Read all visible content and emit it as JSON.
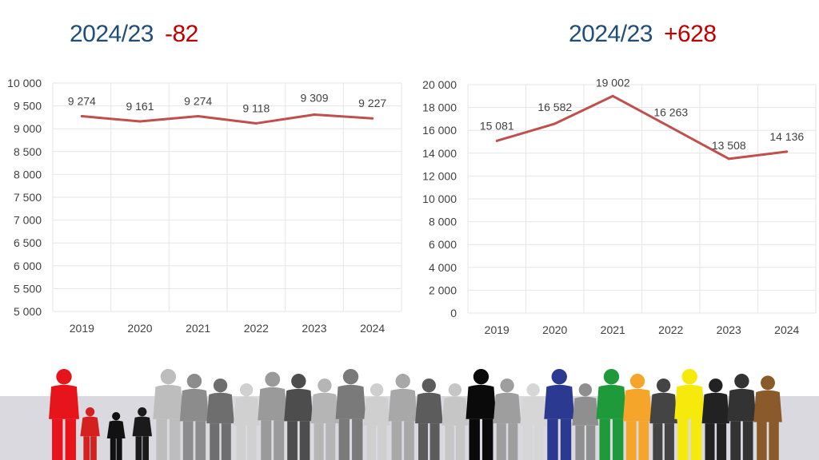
{
  "headings": [
    {
      "period": "2024/23",
      "change": "-82"
    },
    {
      "period": "2024/23",
      "change": "+628"
    }
  ],
  "colors": {
    "heading": "#1f4e79",
    "change": "#c00000",
    "line": "#c0504d",
    "grid": "#e6e6e6",
    "floor": "#d9d9df"
  },
  "chart_data": [
    {
      "type": "line",
      "x": [
        "2019",
        "2020",
        "2021",
        "2022",
        "2023",
        "2024"
      ],
      "series": [
        {
          "values": [
            9274,
            9161,
            9274,
            9118,
            9309,
            9227
          ]
        }
      ],
      "data_labels": [
        "9 274",
        "9 161",
        "9 274",
        "9 118",
        "9 309",
        "9 227"
      ],
      "ylim": [
        5000,
        10000
      ],
      "yticks": [
        "5 000",
        "5 500",
        "6 000",
        "6 500",
        "7 000",
        "7 500",
        "8 000",
        "8 500",
        "9 000",
        "9 500",
        "10 000"
      ],
      "grid": true
    },
    {
      "type": "line",
      "x": [
        "2019",
        "2020",
        "2021",
        "2022",
        "2023",
        "2024"
      ],
      "series": [
        {
          "values": [
            15081,
            16582,
            19002,
            16263,
            13508,
            14136
          ]
        }
      ],
      "data_labels": [
        "15 081",
        "16 582",
        "19 002",
        "16 263",
        "13 508",
        "14 136"
      ],
      "ylim": [
        0,
        20000
      ],
      "yticks": [
        "0",
        "2 000",
        "4 000",
        "6 000",
        "8 000",
        "10 000",
        "12 000",
        "14 000",
        "16 000",
        "18 000",
        "20 000"
      ],
      "grid": true
    }
  ],
  "crowd": {
    "icon": "people-silhouette-icon",
    "figures": [
      {
        "color": "#e8141b"
      },
      {
        "color": "#d52020"
      },
      {
        "color": "#111111"
      },
      {
        "color": "#1a1a1a"
      },
      {
        "color": "#bdbdbd"
      },
      {
        "color": "#8c8c8c"
      },
      {
        "color": "#6e6e6e"
      },
      {
        "color": "#d0d0d0"
      },
      {
        "color": "#9a9a9a"
      },
      {
        "color": "#4d4d4d"
      },
      {
        "color": "#b5b5b5"
      },
      {
        "color": "#7a7a7a"
      },
      {
        "color": "#cfcfcf"
      },
      {
        "color": "#a8a8a8"
      },
      {
        "color": "#5c5c5c"
      },
      {
        "color": "#c6c6c6"
      },
      {
        "color": "#0a0a0a"
      },
      {
        "color": "#9e9e9e"
      },
      {
        "color": "#d6d6d6"
      },
      {
        "color": "#2b3990"
      },
      {
        "color": "#8f8f8f"
      },
      {
        "color": "#1f9a3a"
      },
      {
        "color": "#f5a52a"
      },
      {
        "color": "#444444"
      },
      {
        "color": "#f6ea0c"
      },
      {
        "color": "#222222"
      },
      {
        "color": "#333333"
      },
      {
        "color": "#8b5a2b"
      }
    ]
  }
}
